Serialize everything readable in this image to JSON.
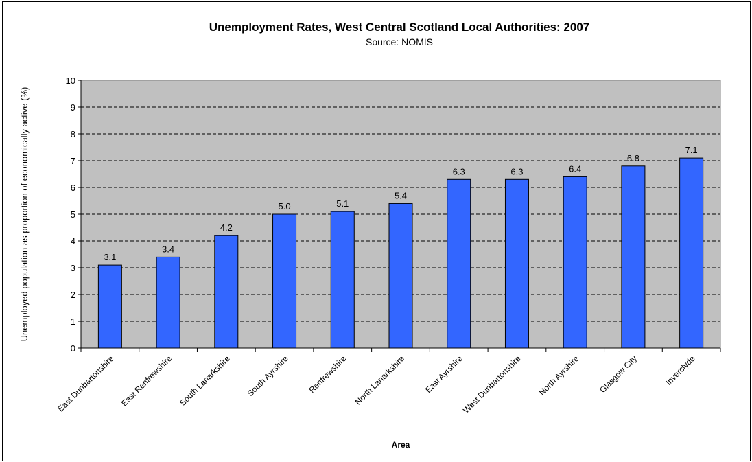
{
  "chart_data": {
    "type": "bar",
    "title": "Unemployment Rates, West Central Scotland Local Authorities: 2007",
    "subtitle": "Source: NOMIS",
    "xlabel": "Area",
    "ylabel": "Unemployed population as proportion of economically active (%)",
    "ylim": [
      0,
      10
    ],
    "yticks": [
      "0",
      "1",
      "2",
      "3",
      "4",
      "5",
      "6",
      "7",
      "8",
      "9",
      "10"
    ],
    "grid": true,
    "categories": [
      "East Dunbartonshire",
      "East Renfrewshire",
      "South Lanarkshire",
      "South Ayrshire",
      "Renfrewshire",
      "North Lanarkshire",
      "East Ayrshire",
      "West Dunbartonshire",
      "North Ayrshire",
      "Glasgow City",
      "Inverclyde"
    ],
    "values": [
      3.1,
      3.4,
      4.2,
      5.0,
      5.1,
      5.4,
      6.3,
      6.3,
      6.4,
      6.8,
      7.1
    ],
    "data_labels": [
      "3.1",
      "3.4",
      "4.2",
      "5.0",
      "5.1",
      "5.4",
      "6.3",
      "6.3",
      "6.4",
      "6.8",
      "7.1"
    ],
    "colors": {
      "bar": "#3366ff",
      "plot_background": "#c0c0c0"
    }
  }
}
